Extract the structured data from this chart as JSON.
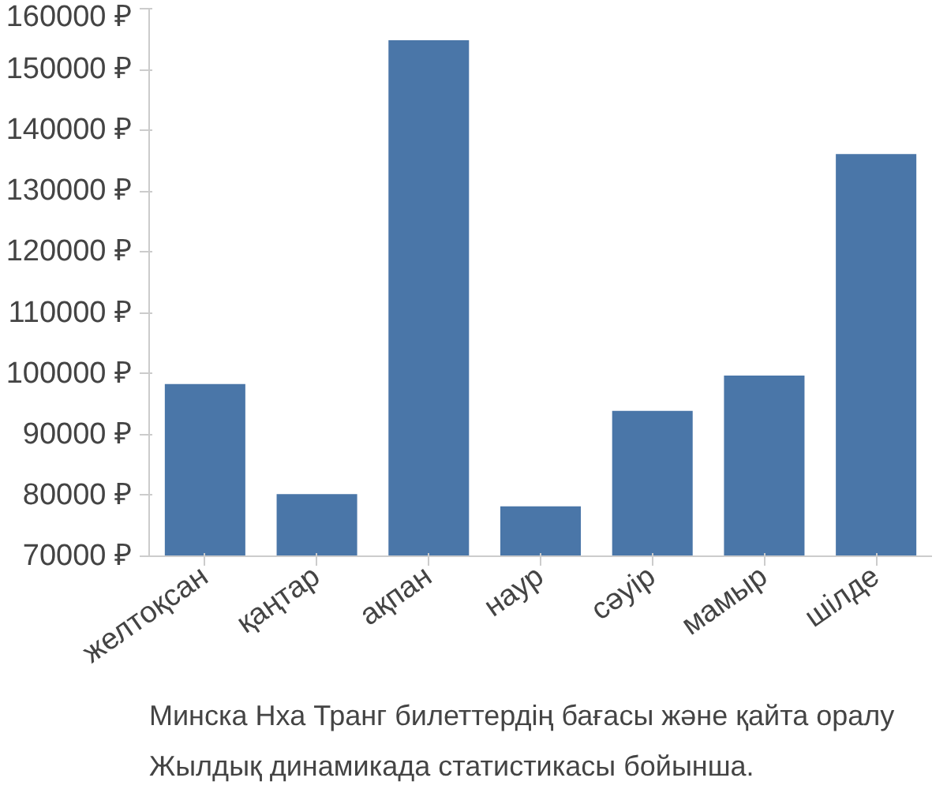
{
  "chart_data": {
    "type": "bar",
    "categories": [
      "желтоқсан",
      "қаңтар",
      "ақпан",
      "наур",
      "сәуір",
      "мамыр",
      "шілде"
    ],
    "values": [
      98300,
      80200,
      154800,
      78200,
      93900,
      99700,
      136100
    ],
    "color": "#4a76a8",
    "ylim": [
      70000,
      160000
    ],
    "yticks": [
      {
        "value": 70000,
        "label": "70000 ₽"
      },
      {
        "value": 80000,
        "label": "80000 ₽"
      },
      {
        "value": 90000,
        "label": "90000 ₽"
      },
      {
        "value": 100000,
        "label": "100000 ₽"
      },
      {
        "value": 110000,
        "label": "110000 ₽"
      },
      {
        "value": 120000,
        "label": "120000 ₽"
      },
      {
        "value": 130000,
        "label": "130000 ₽"
      },
      {
        "value": 140000,
        "label": "140000 ₽"
      },
      {
        "value": 150000,
        "label": "150000 ₽"
      },
      {
        "value": 160000,
        "label": "160000 ₽"
      }
    ],
    "grid": false,
    "annotations": [
      "Минска Нха Транг билеттердің бағасы және қайта оралу",
      "Жылдық динамикада статистикасы бойынша."
    ]
  }
}
